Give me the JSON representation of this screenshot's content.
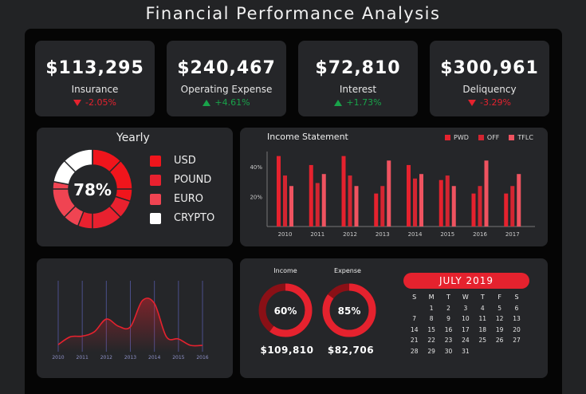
{
  "page_title": "Financial Performance Analysis",
  "kpis": [
    {
      "value": "$113,295",
      "label": "Insurance",
      "change": "-2.05%",
      "direction": "down"
    },
    {
      "value": "$240,467",
      "label": "Operating Expense",
      "change": "+4.61%",
      "direction": "up"
    },
    {
      "value": "$72,810",
      "label": "Interest",
      "change": "+1.73%",
      "direction": "up"
    },
    {
      "value": "$300,961",
      "label": "Deliquency",
      "change": "-3.29%",
      "direction": "down"
    }
  ],
  "colors": {
    "accent": "#e5222e",
    "positive": "#19a34a",
    "card": "#252629",
    "board": "#050505"
  },
  "yearly": {
    "title": "Yearly",
    "center_value": "78%",
    "percent": 78,
    "legend": [
      {
        "label": "USD",
        "color": "#f0151c"
      },
      {
        "label": "POUND",
        "color": "#e8212f"
      },
      {
        "label": "EURO",
        "color": "#f04452"
      },
      {
        "label": "CRYPTO",
        "color": "#ffffff"
      }
    ]
  },
  "income_statement": {
    "title": "Income Statement",
    "legend": [
      {
        "label": "PWD",
        "color": "#e5222e"
      },
      {
        "label": "OFF",
        "color": "#d32531"
      },
      {
        "label": "TFLC",
        "color": "#ef5360"
      }
    ]
  },
  "income": {
    "label": "Income",
    "percent": 60,
    "percent_text": "60%",
    "value": "$109,810"
  },
  "expense": {
    "label": "Expense",
    "percent": 85,
    "percent_text": "85%",
    "value": "$82,706"
  },
  "calendar": {
    "month": "JULY 2019",
    "days_of_week": [
      "S",
      "M",
      "T",
      "W",
      "T",
      "F",
      "S"
    ],
    "weeks": [
      [
        "",
        "1",
        "2",
        "3",
        "4",
        "5",
        "6"
      ],
      [
        "7",
        "8",
        "9",
        "10",
        "11",
        "12",
        "13"
      ],
      [
        "14",
        "15",
        "16",
        "17",
        "18",
        "19",
        "20"
      ],
      [
        "21",
        "22",
        "23",
        "24",
        "25",
        "26",
        "27"
      ],
      [
        "28",
        "29",
        "30",
        "31",
        "",
        "",
        ""
      ]
    ]
  },
  "chart_data": [
    {
      "type": "bar",
      "title": "Income Statement",
      "categories": [
        "2010",
        "2011",
        "2012",
        "2013",
        "2014",
        "2015",
        "2016",
        "2017"
      ],
      "y_ticks": [
        "20%",
        "40%"
      ],
      "ylim": [
        0,
        50
      ],
      "series": [
        {
          "name": "PWD",
          "values": [
            47,
            41,
            47,
            22,
            41,
            31,
            22,
            22
          ]
        },
        {
          "name": "OFF",
          "values": [
            34,
            29,
            34,
            27,
            32,
            34,
            27,
            27
          ]
        },
        {
          "name": "TFLC",
          "values": [
            27,
            35,
            27,
            44,
            35,
            27,
            44,
            35
          ]
        }
      ],
      "legend_position": "top-right"
    },
    {
      "type": "area",
      "categories": [
        "2010",
        "2011",
        "2012",
        "2013",
        "2014",
        "2015",
        "2016"
      ],
      "x": [
        2010,
        2010.5,
        2011,
        2011.5,
        2012,
        2012.5,
        2013,
        2013.5,
        2014,
        2014.5,
        2015,
        2015.5,
        2016
      ],
      "values": [
        10,
        21,
        22,
        28,
        46,
        36,
        35,
        72,
        68,
        21,
        18,
        9,
        9
      ],
      "ylim": [
        0,
        100
      ],
      "grid": "vertical"
    },
    {
      "type": "pie",
      "categories": [
        "USD",
        "POUND",
        "EURO",
        "CRYPTO"
      ],
      "values": [
        30,
        26,
        22,
        22
      ]
    }
  ]
}
